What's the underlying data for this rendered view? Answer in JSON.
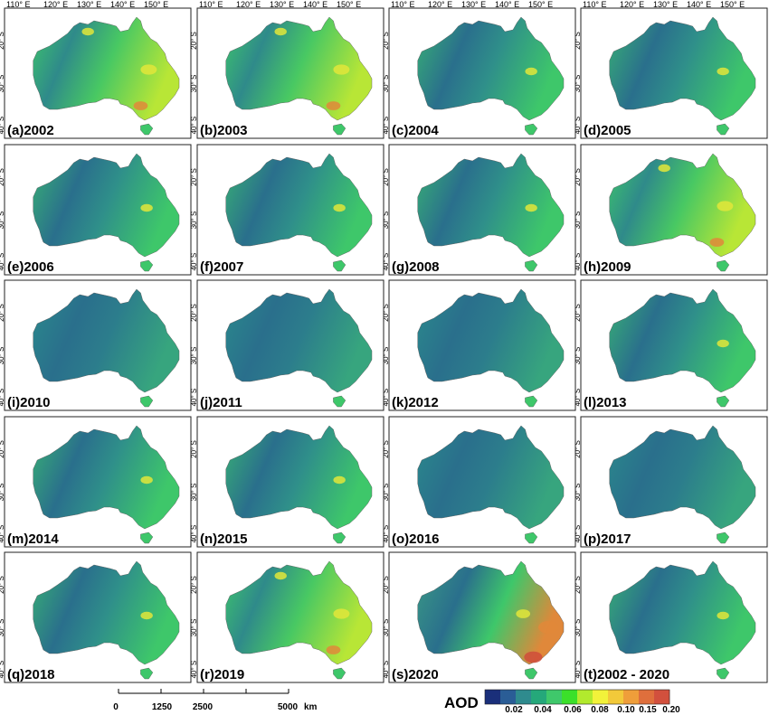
{
  "figure": {
    "longitude_labels": [
      "110° E",
      "120° E",
      "130° E",
      "140° E",
      "150° E"
    ],
    "latitude_labels": [
      "20° S",
      "30° S",
      "40° S"
    ],
    "panels": [
      {
        "label": "(a)2002",
        "level": "high"
      },
      {
        "label": "(b)2003",
        "level": "high"
      },
      {
        "label": "(c)2004",
        "level": "medium"
      },
      {
        "label": "(d)2005",
        "level": "medium"
      },
      {
        "label": "(e)2006",
        "level": "medium"
      },
      {
        "label": "(f)2007",
        "level": "medium"
      },
      {
        "label": "(g)2008",
        "level": "medium"
      },
      {
        "label": "(h)2009",
        "level": "high"
      },
      {
        "label": "(i)2010",
        "level": "low"
      },
      {
        "label": "(j)2011",
        "level": "low"
      },
      {
        "label": "(k)2012",
        "level": "low"
      },
      {
        "label": "(l)2013",
        "level": "medium"
      },
      {
        "label": "(m)2014",
        "level": "medium"
      },
      {
        "label": "(n)2015",
        "level": "medium"
      },
      {
        "label": "(o)2016",
        "level": "low"
      },
      {
        "label": "(p)2017",
        "level": "low"
      },
      {
        "label": "(q)2018",
        "level": "medium"
      },
      {
        "label": "(r)2019",
        "level": "high"
      },
      {
        "label": "(s)2020",
        "level": "very-high"
      },
      {
        "label": "(t)2002 - 2020",
        "level": "medium"
      }
    ],
    "scale_bar": {
      "ticks": [
        "0",
        "1250",
        "2500",
        "5000"
      ],
      "unit": "km"
    },
    "legend": {
      "title": "AOD",
      "tick_labels": [
        "0.02",
        "0.04",
        "0.06",
        "0.08",
        "0.10",
        "0.15",
        "0.20"
      ],
      "colors": [
        "#1a2f7a",
        "#2a5d96",
        "#2f8b8e",
        "#25a87a",
        "#3fc86b",
        "#3be02a",
        "#b2ea2d",
        "#f2f23a",
        "#f2c93a",
        "#ef9e3a",
        "#df6f3c",
        "#d2503d"
      ]
    },
    "colors": {
      "ocean": "#ffffff",
      "frame": "#222222",
      "land_low": "#2a6f8c",
      "land_mid": "#2f8f8a",
      "land_green": "#3ec76a",
      "land_yellow": "#e2e63a",
      "land_orange": "#e0883a",
      "land_red": "#cf4d3b"
    }
  }
}
